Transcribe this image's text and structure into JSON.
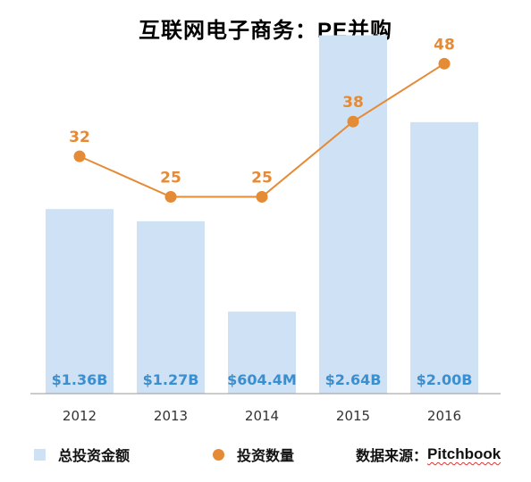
{
  "title": {
    "cn": "互联网电子商务：",
    "latin": "PE",
    "cn2": "并购"
  },
  "legend": {
    "bars": "总投资金额",
    "line": "投资数量",
    "source_label": "数据来源：",
    "source_value": "Pitchbook"
  },
  "colors": {
    "bar": "#cfe1f5",
    "bar_label": "#3a8fd0",
    "line": "#e58a35",
    "axis": "#999999",
    "tick": "#333333"
  },
  "chart_data": {
    "type": "bar+line",
    "categories": [
      "2012",
      "2013",
      "2014",
      "2015",
      "2016"
    ],
    "series": [
      {
        "name": "总投资金额",
        "type": "bar",
        "values": [
          1.36,
          1.27,
          0.6044,
          2.64,
          2.0
        ],
        "labels": [
          "$1.36B",
          "$1.27B",
          "$604.4M",
          "$2.64B",
          "$2.00B"
        ]
      },
      {
        "name": "投资数量",
        "type": "line",
        "values": [
          32,
          25,
          25,
          38,
          48
        ],
        "labels": [
          "32",
          "25",
          "25",
          "38",
          "48"
        ]
      }
    ],
    "bar_ylim": [
      0,
      2.9
    ],
    "line_ylim": [
      -9,
      59
    ],
    "grid": false,
    "legend_position": "bottom"
  }
}
